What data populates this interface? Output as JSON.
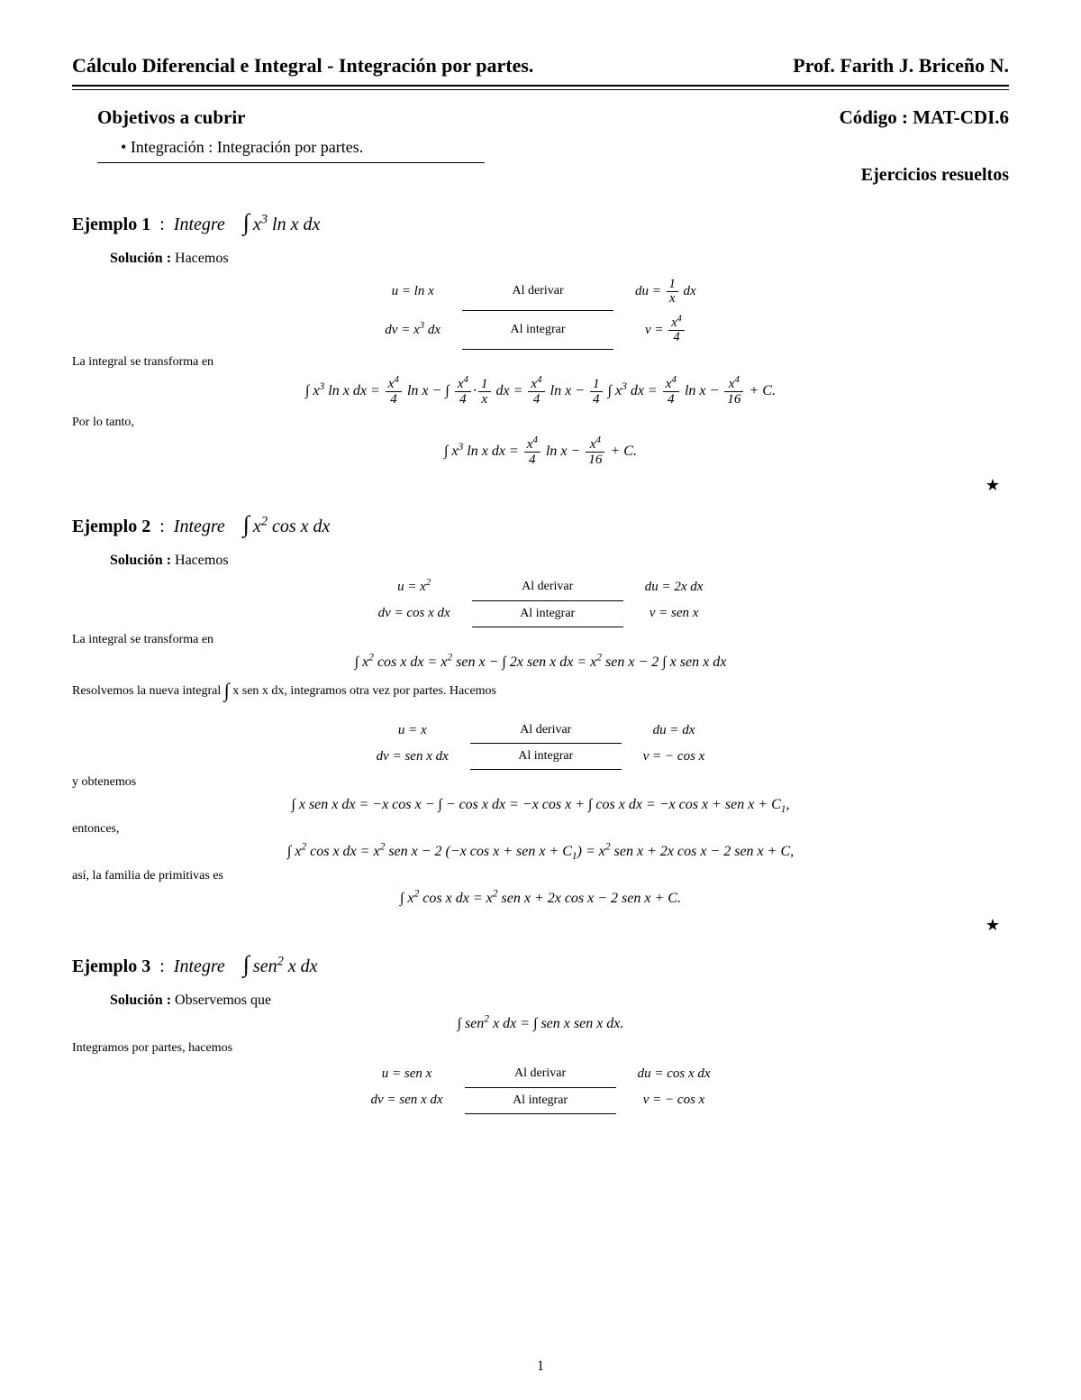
{
  "header": {
    "left_title": "Cálculo Diferencial e Integral - Integración por partes.",
    "right_author": "Prof. Farith J. Briceño N."
  },
  "objectives": {
    "heading": "Objetivos a cubrir",
    "code_label": "Código : MAT-CDI.6",
    "items": [
      "Integración : Integración por partes."
    ],
    "solved_label": "Ejercicios resueltos"
  },
  "examples": [
    {
      "label": "Ejemplo 1",
      "lead": "Integre",
      "integral_html": "x<sup>3</sup> ln x dx",
      "solution_label": "Solución :",
      "solution_intro": "Hacemos",
      "subst": [
        {
          "u": "u = ln x",
          "mid": "Al derivar",
          "r": "du = (1/x) dx",
          "r_html": "du = <span class='frac'><span class='n'>1</span><span class='d var'>x</span></span> dx"
        },
        {
          "u": "dv = x<sup>3</sup> dx",
          "mid": "Al integrar",
          "r": "v = x⁴/4",
          "r_html": "v = <span class='frac'><span class='n var'>x<sup>4</sup></span><span class='d'>4</span></span>"
        }
      ],
      "transform_label": "La integral se transforma en",
      "eq1_html": "∫ x<sup>3</sup> ln x dx = <span class='frac'><span class='n var'>x<sup>4</sup></span><span class='d'>4</span></span> ln x − ∫ <span class='frac'><span class='n var'>x<sup>4</sup></span><span class='d'>4</span></span>·<span class='frac'><span class='n'>1</span><span class='d var'>x</span></span> dx = <span class='frac'><span class='n var'>x<sup>4</sup></span><span class='d'>4</span></span> ln x − <span class='frac'><span class='n'>1</span><span class='d'>4</span></span> ∫ x<sup>3</sup> dx = <span class='frac'><span class='n var'>x<sup>4</sup></span><span class='d'>4</span></span> ln x − <span class='frac'><span class='n var'>x<sup>4</sup></span><span class='d'>16</span></span> + C.",
      "therefore": "Por lo tanto,",
      "eq_final_html": "∫ x<sup>3</sup> ln x dx = <span class='frac'><span class='n var'>x<sup>4</sup></span><span class='d'>4</span></span> ln x − <span class='frac'><span class='n var'>x<sup>4</sup></span><span class='d'>16</span></span> + C."
    },
    {
      "label": "Ejemplo 2",
      "lead": "Integre",
      "integral_html": "x<sup>2</sup> cos x dx",
      "solution_label": "Solución :",
      "solution_intro": "Hacemos",
      "subst": [
        {
          "u": "u = x<sup>2</sup>",
          "mid": "Al derivar",
          "r_html": "du = 2x dx"
        },
        {
          "u": "dv = cos x dx",
          "mid": "Al integrar",
          "r_html": "v = sen x"
        }
      ],
      "transform_label": "La integral se transforma en",
      "eq1_html": "∫ x<sup>2</sup> cos x dx = x<sup>2</sup> sen x − ∫ 2x sen x dx = x<sup>2</sup> sen x − 2 ∫ x sen x dx",
      "resolve_label_html": "Resolvemos la nueva integral <span class='ints'>∫</span> x sen x dx, integramos otra vez por partes. Hacemos",
      "subst2": [
        {
          "u": "u = x",
          "mid": "Al derivar",
          "r_html": "du = dx"
        },
        {
          "u": "dv = sen x dx",
          "mid": "Al integrar",
          "r_html": "v = − cos x"
        }
      ],
      "obtain_label": "y obtenemos",
      "eq2_html": "∫ x sen x dx = −x cos x − ∫ − cos x dx = −x cos x + ∫ cos x dx = −x cos x + sen x + C<sub>1</sub>,",
      "entonces": "entonces,",
      "eq3_html": "∫ x<sup>2</sup> cos x dx = x<sup>2</sup> sen x − 2 (−x cos x + sen x + C<sub>1</sub>) = x<sup>2</sup> sen x + 2x cos x − 2 sen x + C,",
      "family_label": "así, la familia de primitivas es",
      "eq_final_html": "∫ x<sup>2</sup> cos x dx = x<sup>2</sup> sen x + 2x cos x − 2 sen x + C."
    },
    {
      "label": "Ejemplo 3",
      "lead": "Integre",
      "integral_html": "sen<sup>2</sup> x dx",
      "solution_label": "Solución :",
      "solution_intro": "Observemos que",
      "eq_obs_html": "∫ sen<sup>2</sup> x dx = ∫ sen x sen x dx.",
      "ipp_label": "Integramos por partes, hacemos",
      "subst": [
        {
          "u": "u = sen x",
          "mid": "Al derivar",
          "r_html": "du = cos x dx"
        },
        {
          "u": "dv = sen x dx",
          "mid": "Al integrar",
          "r_html": "v = − cos x"
        }
      ]
    }
  ],
  "page_number": "1",
  "star": "★"
}
